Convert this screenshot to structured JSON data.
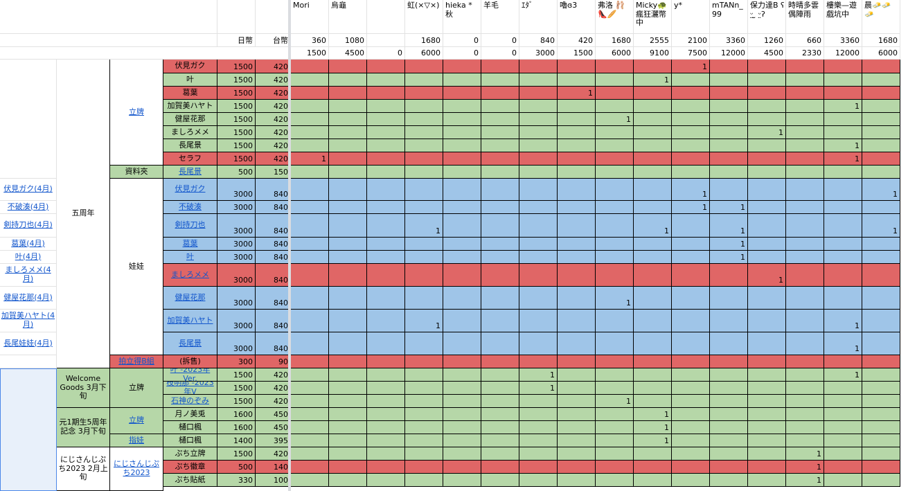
{
  "colors": {
    "red": "#e06666",
    "green": "#b6d7a8",
    "blue": "#9fc5e8",
    "lightblue": "#e8f0fa",
    "link": "#1155cc"
  },
  "col_headers": {
    "twd": "日幣",
    "ntd": "台幣",
    "buyers": [
      "Mori",
      "烏龜",
      "",
      "虹(×▽×)",
      "hieka * 秋",
      "羊毛",
      "ｴﾀﾞ",
      "嚕ɞ3",
      "弗洛 🩰👠🥖",
      "Micky🐢 瘋狂灑幣中",
      "y*",
      "mTANn_ 99",
      "保力達B ʕ ᵕ̤ ̫ ᵕ̤ʔ",
      "時晴多雲偶陣雨",
      "樓樂—遊戲坑中",
      "晨🧈🧈🧈"
    ],
    "sub1": [
      "360",
      "1080",
      "",
      "1680",
      "0",
      "0",
      "840",
      "420",
      "1680",
      "2555",
      "2100",
      "3360",
      "1260",
      "660",
      "3360",
      "1680"
    ],
    "sub2": [
      "1500",
      "4500",
      "0",
      "6000",
      "0",
      "0",
      "3000",
      "1500",
      "6000",
      "9100",
      "7500",
      "12000",
      "4500",
      "2330",
      "12000",
      "6000"
    ]
  },
  "left_links": [
    "伏見ガク(4月)",
    "不破湊(4月)",
    "剣持刀也(4月)",
    "葛葉(4月)",
    "叶(4月)",
    "ましろメメ(4月)",
    "健屋花那(4月)",
    "加賀美ハヤト(4月)",
    "長尾娃娃(4月)"
  ],
  "groups": {
    "anniv5": "五周年",
    "standee": "立牌",
    "folder": "資料夾",
    "doll": "娃娃",
    "welcome": "Welcome Goods 3月下旬",
    "welcome_standee": "立牌",
    "gen1": "元1期生5周年記念 3月下旬",
    "gen1_standee": "立牌",
    "gen1_finger": "指娃",
    "petit": "にじさんじぷち2023 2月上旬",
    "petit_link": "にじさんじぷち2023",
    "blind": "拍立得B組"
  },
  "rows": [
    {
      "name": "伏見ガク",
      "link": false,
      "jp": "1500",
      "tw": "420",
      "color": "red",
      "marks": [
        "",
        "",
        "",
        "",
        "",
        "",
        "",
        "",
        "",
        "",
        "1",
        "",
        "",
        "",
        "",
        ""
      ]
    },
    {
      "name": "叶",
      "link": false,
      "jp": "1500",
      "tw": "420",
      "color": "green",
      "marks": [
        "",
        "",
        "",
        "",
        "",
        "",
        "",
        "",
        "",
        "1",
        "",
        "",
        "",
        "",
        "",
        ""
      ]
    },
    {
      "name": "葛葉",
      "link": false,
      "jp": "1500",
      "tw": "420",
      "color": "red",
      "marks": [
        "",
        "",
        "",
        "",
        "",
        "",
        "",
        "1",
        "",
        "",
        "",
        "",
        "",
        "",
        "",
        ""
      ]
    },
    {
      "name": "加賀美ハヤト",
      "link": false,
      "jp": "1500",
      "tw": "420",
      "color": "green",
      "marks": [
        "",
        "",
        "",
        "",
        "",
        "",
        "",
        "",
        "",
        "",
        "",
        "",
        "",
        "",
        "1",
        ""
      ]
    },
    {
      "name": "健屋花那",
      "link": false,
      "jp": "1500",
      "tw": "420",
      "color": "green",
      "marks": [
        "",
        "",
        "",
        "",
        "",
        "",
        "",
        "",
        "1",
        "",
        "",
        "",
        "",
        "",
        "",
        ""
      ]
    },
    {
      "name": "ましろメメ",
      "link": false,
      "jp": "1500",
      "tw": "420",
      "color": "green",
      "marks": [
        "",
        "",
        "",
        "",
        "",
        "",
        "",
        "",
        "",
        "",
        "",
        "",
        "1",
        "",
        "",
        ""
      ]
    },
    {
      "name": "長尾景",
      "link": false,
      "jp": "1500",
      "tw": "420",
      "color": "green",
      "marks": [
        "",
        "",
        "",
        "",
        "",
        "",
        "",
        "",
        "",
        "",
        "",
        "",
        "",
        "",
        "1",
        ""
      ]
    },
    {
      "name": "セラフ",
      "link": false,
      "jp": "1500",
      "tw": "420",
      "color": "red",
      "marks": [
        "1",
        "",
        "",
        "",
        "",
        "",
        "",
        "",
        "",
        "",
        "",
        "",
        "",
        "",
        "1",
        ""
      ]
    },
    {
      "name": "長尾景",
      "link": true,
      "jp": "500",
      "tw": "150",
      "color": "green",
      "marks": [
        "",
        "",
        "",
        "",
        "",
        "",
        "",
        "",
        "",
        "",
        "",
        "",
        "",
        "",
        "",
        ""
      ]
    },
    {
      "name": "伏見ガク",
      "link": true,
      "jp": "3000",
      "tw": "840",
      "color": "blue",
      "marks": [
        "",
        "",
        "",
        "",
        "",
        "",
        "",
        "",
        "",
        "",
        "1",
        "",
        "",
        "",
        "",
        "1"
      ]
    },
    {
      "name": "不破湊",
      "link": true,
      "jp": "3000",
      "tw": "840",
      "color": "blue",
      "marks": [
        "",
        "",
        "",
        "",
        "",
        "",
        "",
        "",
        "",
        "",
        "1",
        "1",
        "",
        "",
        "",
        ""
      ]
    },
    {
      "name": "剣持刀也",
      "link": true,
      "jp": "3000",
      "tw": "840",
      "color": "blue",
      "marks": [
        "",
        "",
        "",
        "1",
        "",
        "",
        "",
        "",
        "",
        "1",
        "",
        "1",
        "",
        "",
        "",
        "1"
      ]
    },
    {
      "name": "葛葉",
      "link": true,
      "jp": "3000",
      "tw": "840",
      "color": "blue",
      "marks": [
        "",
        "",
        "",
        "",
        "",
        "",
        "",
        "",
        "",
        "",
        "",
        "1",
        "",
        "",
        "",
        ""
      ]
    },
    {
      "name": "叶",
      "link": true,
      "jp": "3000",
      "tw": "840",
      "color": "blue",
      "marks": [
        "",
        "",
        "",
        "",
        "",
        "",
        "",
        "",
        "",
        "",
        "",
        "1",
        "",
        "",
        "",
        ""
      ]
    },
    {
      "name": "ましろメメ",
      "link": true,
      "jp": "3000",
      "tw": "840",
      "color": "red",
      "marks": [
        "",
        "",
        "",
        "",
        "",
        "",
        "",
        "",
        "",
        "",
        "",
        "",
        "1",
        "",
        "",
        ""
      ]
    },
    {
      "name": "健屋花那",
      "link": true,
      "jp": "3000",
      "tw": "840",
      "color": "blue",
      "marks": [
        "",
        "",
        "",
        "",
        "",
        "",
        "",
        "",
        "1",
        "",
        "",
        "",
        "",
        "",
        "",
        ""
      ]
    },
    {
      "name": "加賀美ハヤト",
      "link": true,
      "jp": "3000",
      "tw": "840",
      "color": "blue",
      "marks": [
        "",
        "",
        "",
        "1",
        "",
        "",
        "",
        "",
        "",
        "",
        "",
        "",
        "",
        "",
        "1",
        ""
      ]
    },
    {
      "name": "長尾景",
      "link": true,
      "jp": "3000",
      "tw": "840",
      "color": "blue",
      "marks": [
        "",
        "",
        "",
        "",
        "",
        "",
        "",
        "",
        "",
        "",
        "",
        "",
        "",
        "",
        "1",
        ""
      ]
    },
    {
      "name": "(拆售)",
      "link": false,
      "jp": "300",
      "tw": "90",
      "color": "red",
      "marks": [
        "",
        "",
        "",
        "",
        "",
        "",
        "",
        "",
        "",
        "",
        "",
        "",
        "",
        "",
        "",
        ""
      ]
    },
    {
      "name": "叶 -2023年Ver.",
      "link": true,
      "jp": "1500",
      "tw": "420",
      "color": "green",
      "marks": [
        "",
        "",
        "",
        "",
        "",
        "",
        "1",
        "",
        "",
        "",
        "",
        "",
        "",
        "",
        "1",
        ""
      ]
    },
    {
      "name": "枝明那 -2023年V",
      "link": true,
      "jp": "1500",
      "tw": "420",
      "color": "green",
      "marks": [
        "",
        "",
        "",
        "",
        "",
        "",
        "1",
        "",
        "",
        "",
        "",
        "",
        "",
        "",
        "",
        ""
      ]
    },
    {
      "name": "石神のぞみ",
      "link": true,
      "jp": "1500",
      "tw": "420",
      "color": "green",
      "marks": [
        "",
        "",
        "",
        "",
        "",
        "",
        "",
        "",
        "1",
        "",
        "",
        "",
        "",
        "",
        "",
        ""
      ]
    },
    {
      "name": "月ノ美兎",
      "link": false,
      "jp": "1600",
      "tw": "450",
      "color": "green",
      "marks": [
        "",
        "",
        "",
        "",
        "",
        "",
        "",
        "",
        "",
        "1",
        "",
        "",
        "",
        "",
        "",
        ""
      ]
    },
    {
      "name": "樋口楓",
      "link": false,
      "jp": "1600",
      "tw": "450",
      "color": "green",
      "marks": [
        "",
        "",
        "",
        "",
        "",
        "",
        "",
        "",
        "",
        "1",
        "",
        "",
        "",
        "",
        "",
        ""
      ]
    },
    {
      "name": "樋口楓",
      "link": false,
      "jp": "1400",
      "tw": "395",
      "color": "green",
      "marks": [
        "",
        "",
        "",
        "",
        "",
        "",
        "",
        "",
        "",
        "1",
        "",
        "",
        "",
        "",
        "",
        ""
      ]
    },
    {
      "name": "ぷち立牌",
      "link": false,
      "jp": "1500",
      "tw": "420",
      "color": "green",
      "marks": [
        "",
        "",
        "",
        "",
        "",
        "",
        "",
        "",
        "",
        "",
        "",
        "",
        "",
        "1",
        "",
        ""
      ]
    },
    {
      "name": "ぷち徽章",
      "link": false,
      "jp": "500",
      "tw": "140",
      "color": "red",
      "marks": [
        "",
        "",
        "",
        "",
        "",
        "",
        "",
        "",
        "",
        "",
        "",
        "",
        "",
        "1",
        "",
        ""
      ]
    },
    {
      "name": "ぷち貼紙",
      "link": false,
      "jp": "330",
      "tw": "100",
      "color": "green",
      "marks": [
        "",
        "",
        "",
        "",
        "",
        "",
        "",
        "",
        "",
        "",
        "",
        "",
        "",
        "1",
        "",
        ""
      ]
    }
  ]
}
